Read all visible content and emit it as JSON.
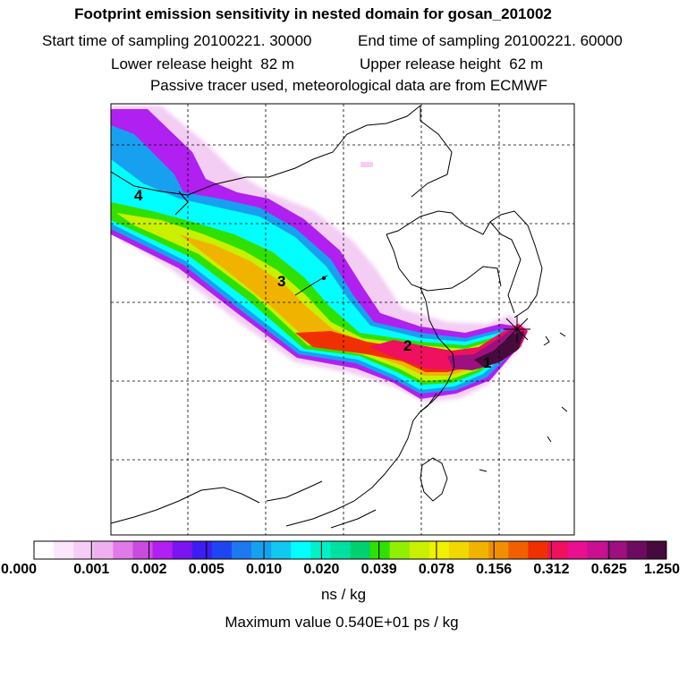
{
  "title": "Footprint emission sensitivity in nested domain for gosan_201002",
  "start_label": "Start time of sampling",
  "start_value": "20100221. 30000",
  "end_label": "End time of sampling",
  "end_value": "20100221. 60000",
  "lower_label": "Lower release height",
  "lower_value": "82 m",
  "upper_label": "Upper release height",
  "upper_value": "62 m",
  "tracer_line": "Passive tracer used, meteorological data are from ECMWF",
  "markers": [
    "1",
    "2",
    "3",
    "4"
  ],
  "colorbar": {
    "ticks": [
      "0.000",
      "0.001",
      "0.002",
      "0.005",
      "0.010",
      "0.020",
      "0.039",
      "0.078",
      "0.156",
      "0.312",
      "0.625",
      "1.250"
    ],
    "unit": "ns / kg",
    "colors": [
      "#ffffff",
      "#fbe6fb",
      "#f6cdf6",
      "#f0b0f0",
      "#e07ae8",
      "#c84ce0",
      "#b020f0",
      "#7a14f0",
      "#3c1ef0",
      "#1e46f0",
      "#1e78f0",
      "#18a0f0",
      "#10c8f0",
      "#00ffff",
      "#00f0c8",
      "#00e0a0",
      "#00d070",
      "#30e000",
      "#90f000",
      "#c8f000",
      "#f0f000",
      "#f0d800",
      "#f0b400",
      "#f09000",
      "#f06000",
      "#f03000",
      "#f01060",
      "#e81090",
      "#c81090",
      "#9c1080",
      "#6c0c60",
      "#460a3c"
    ]
  },
  "max_value": "Maximum value  0.540E+01 ps / kg"
}
